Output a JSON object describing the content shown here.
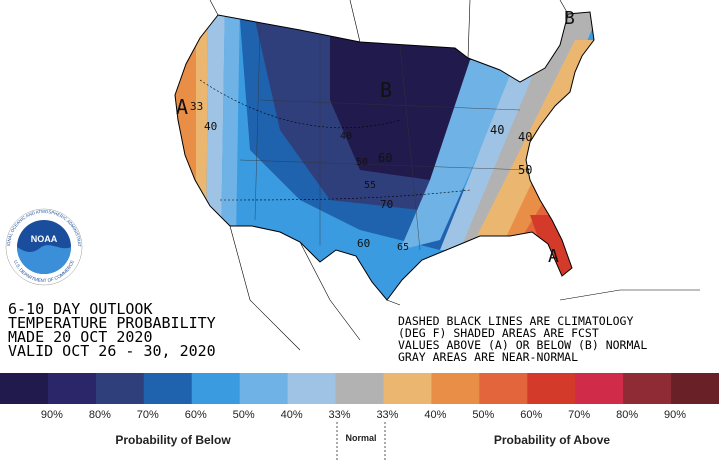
{
  "title_lines": [
    "6-10 DAY OUTLOOK",
    "TEMPERATURE PROBABILITY",
    "MADE  20 OCT 2020",
    "VALID  OCT 26 - 30, 2020"
  ],
  "notes": [
    "DASHED BLACK LINES ARE CLIMATOLOGY",
    "(DEG F) SHADED AREAS ARE FCST",
    "VALUES ABOVE (A) OR BELOW (B) NORMAL",
    "GRAY AREAS ARE NEAR-NORMAL"
  ],
  "map_labels": [
    "A",
    "33",
    "40",
    "B",
    "40",
    "50",
    "60",
    "55",
    "70",
    "60",
    "65",
    "40",
    "40",
    "50",
    "A",
    "B"
  ],
  "logo": {
    "name": "NOAA",
    "ring_top": "NATIONAL OCEANIC AND ATMOSPHERIC ADMINISTRATION",
    "ring_bottom": "U.S. DEPARTMENT OF COMMERCE"
  },
  "legend": {
    "colors": [
      "#211a4c",
      "#2a2669",
      "#2f3f7c",
      "#1f62ad",
      "#3a9be0",
      "#6fb2e6",
      "#9fc3e4",
      "#b2b2b2",
      "#ebb670",
      "#e98e46",
      "#e3653b",
      "#d33a2a",
      "#d12b4a",
      "#8e2b34",
      "#6a2027"
    ],
    "labels": [
      "90%",
      "80%",
      "70%",
      "60%",
      "50%",
      "40%",
      "33%",
      "33%",
      "40%",
      "50%",
      "60%",
      "70%",
      "80%",
      "90%"
    ],
    "below": "Probability of Below",
    "normal": "Normal",
    "above": "Probability of Above"
  }
}
